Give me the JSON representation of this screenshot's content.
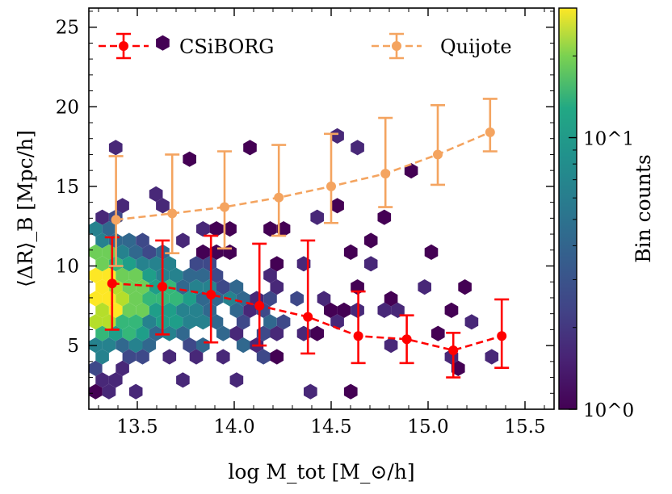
{
  "chart_data": {
    "type": "scatter",
    "description_kind": "hexbin density with binned mean and error bars",
    "xlabel": "log M_tot [M_⊙/h]",
    "ylabel": "⟨ΔR⟩_B [Mpc/h]",
    "xlim": [
      13.25,
      15.65
    ],
    "ylim": [
      1.0,
      26.2
    ],
    "xticks": [
      13.5,
      14.0,
      14.5,
      15.0,
      15.5
    ],
    "xtick_labels": [
      "13.5",
      "14.0",
      "14.5",
      "15.0",
      "15.5"
    ],
    "yticks": [
      5,
      10,
      15,
      20,
      25
    ],
    "ytick_labels": [
      "5",
      "10",
      "15",
      "20",
      "25"
    ],
    "colorbar": {
      "label": "Bin counts",
      "scale": "log",
      "range": [
        1,
        30
      ],
      "colormap": "viridis",
      "tick_labels": [
        "10^0",
        "10^1"
      ]
    },
    "legend": {
      "placement": "top",
      "entries": [
        "CSiBORG",
        "Quijote"
      ]
    },
    "series": [
      {
        "name": "CSiBORG",
        "color": "#ff0000",
        "x": [
          13.37,
          13.63,
          13.88,
          14.13,
          14.38,
          14.64,
          14.89,
          15.13,
          15.38
        ],
        "y": [
          8.9,
          8.7,
          8.2,
          7.5,
          6.8,
          5.6,
          5.4,
          4.7,
          5.6
        ],
        "ylow": [
          6.0,
          5.7,
          5.2,
          5.0,
          4.5,
          3.9,
          3.9,
          3.0,
          3.6
        ],
        "yhigh": [
          11.8,
          11.6,
          11.9,
          11.4,
          11.6,
          8.4,
          6.9,
          5.8,
          7.9
        ]
      },
      {
        "name": "Quijote",
        "color": "#f4a460",
        "x": [
          13.39,
          13.68,
          13.95,
          14.23,
          14.5,
          14.78,
          15.05,
          15.32
        ],
        "y": [
          12.9,
          13.3,
          13.7,
          14.3,
          15.0,
          15.8,
          17.0,
          18.4
        ],
        "ylow": [
          10.0,
          10.8,
          11.1,
          11.9,
          12.7,
          13.7,
          15.1,
          17.2
        ],
        "yhigh": [
          16.9,
          17.0,
          17.2,
          17.6,
          18.3,
          19.3,
          20.1,
          20.5
        ]
      }
    ]
  }
}
